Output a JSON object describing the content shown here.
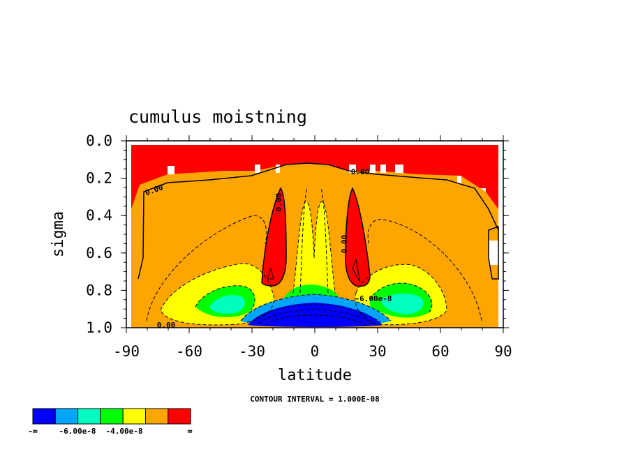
{
  "chart_data": {
    "type": "contour",
    "title": "cumulus moistning",
    "xlabel": "latitude",
    "ylabel": "sigma",
    "xlim": [
      -90,
      90
    ],
    "ylim": [
      1.0,
      0.0
    ],
    "x_ticks": [
      "-90",
      "-60",
      "-30",
      "0",
      "30",
      "60",
      "90"
    ],
    "y_ticks": [
      "0.0",
      "0.2",
      "0.4",
      "0.6",
      "0.8",
      "1.0"
    ],
    "contour_interval_text": "CONTOUR INTERVAL = 1.000E-08",
    "contour_labels": [
      "0.00",
      "0.00",
      "0.00",
      "0.00",
      "0.00",
      "-6.00e-8"
    ],
    "colorbar": {
      "colors": [
        "#0000ff",
        "#00a5ff",
        "#00ffbf",
        "#00ff00",
        "#ffff00",
        "#ffa500",
        "#ff0000"
      ],
      "labels": [
        "-∞",
        "-6.00e-8",
        "-4.00e-8",
        "∞"
      ]
    }
  }
}
